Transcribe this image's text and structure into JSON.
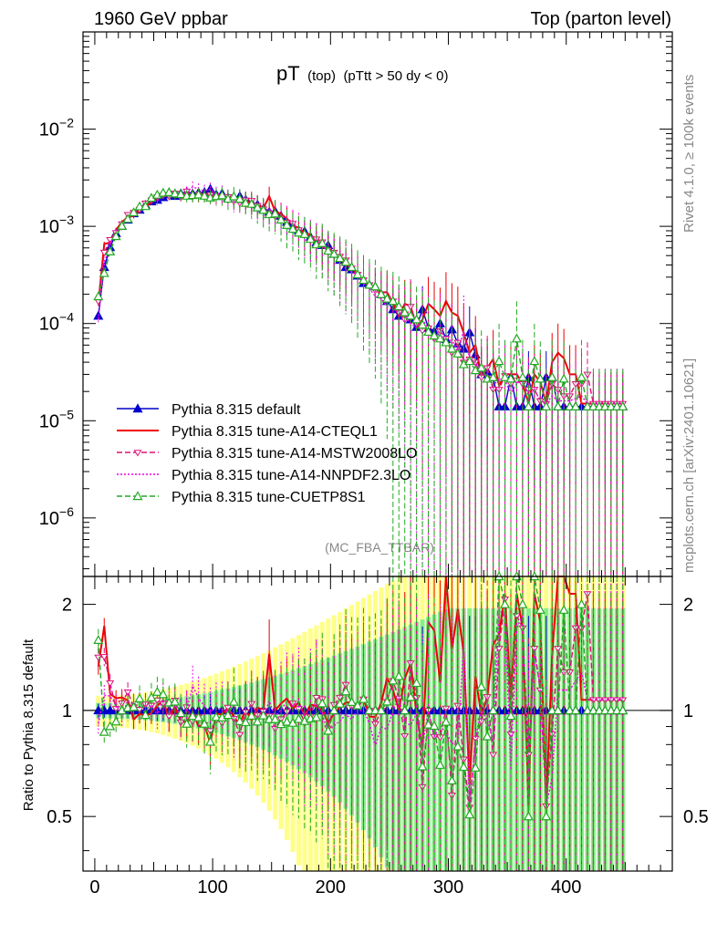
{
  "header": {
    "left": "1960 GeV ppbar",
    "right": "Top (parton level)"
  },
  "side_text": {
    "rivet": "Rivet 4.1.0, ≥ 100k events",
    "mcplots": "mcplots.cern.ch [arXiv:2401.10621]"
  },
  "chart_data": [
    {
      "type": "line",
      "panel": "main",
      "title_main": "pT",
      "title_sub": "(top)",
      "title_cut": "(pTtt > 50 dy < 0)",
      "annotation": "(MC_FBA_TTBAR)",
      "xlabel": "",
      "ylabel": "",
      "xlim": [
        -10,
        490
      ],
      "ylim": [
        2.5e-07,
        0.1
      ],
      "yscale": "log",
      "y_ticks": [
        {
          "value": 1e-06,
          "base": "10",
          "exp": "−6"
        },
        {
          "value": 1e-05,
          "base": "10",
          "exp": "−5"
        },
        {
          "value": 0.0001,
          "base": "10",
          "exp": "−4"
        },
        {
          "value": 0.001,
          "base": "10",
          "exp": "−3"
        },
        {
          "value": 0.01,
          "base": "10",
          "exp": "−2"
        }
      ],
      "x": [
        3,
        8,
        13,
        18,
        23,
        28,
        33,
        38,
        43,
        48,
        53,
        58,
        63,
        68,
        73,
        78,
        83,
        88,
        93,
        98,
        103,
        108,
        113,
        118,
        123,
        128,
        133,
        138,
        143,
        148,
        153,
        158,
        163,
        168,
        173,
        178,
        183,
        188,
        193,
        198,
        203,
        208,
        213,
        218,
        223,
        228,
        233,
        238,
        243,
        248,
        253,
        258,
        263,
        268,
        273,
        278,
        283,
        288,
        293,
        298,
        303,
        308,
        313,
        318,
        323,
        328,
        333,
        338,
        343,
        348,
        353,
        358,
        363,
        368,
        373,
        378,
        383,
        388,
        393,
        398,
        403,
        408,
        413,
        418,
        423,
        428,
        433,
        438,
        443,
        448
      ],
      "series": [
        {
          "name": "Pythia 8.315 default",
          "color": "#0000cc",
          "dash": "solid",
          "marker": "triangle-filled",
          "values": [
            0.00012,
            0.00038,
            0.00061,
            0.00085,
            0.00101,
            0.00117,
            0.00136,
            0.00148,
            0.00166,
            0.0018,
            0.00187,
            0.00199,
            0.00213,
            0.00205,
            0.00218,
            0.00225,
            0.00217,
            0.00222,
            0.00225,
            0.00242,
            0.00213,
            0.00218,
            0.00198,
            0.00192,
            0.00205,
            0.00188,
            0.00176,
            0.00168,
            0.00152,
            0.00141,
            0.00143,
            0.00128,
            0.00111,
            0.00102,
            0.00091,
            0.00089,
            0.00078,
            0.00068,
            0.00064,
            0.00064,
            0.00052,
            0.00045,
            0.00038,
            0.00036,
            0.00031,
            0.00026,
            0.00025,
            0.00024,
            0.0002,
            0.00017,
            0.00014,
            0.00012,
            0.00013,
            0.00011,
            9.2e-05,
            0.00014,
            9e-05,
            8.3e-05,
            0.0001,
            6.9e-05,
            8.7e-05,
            6.2e-05,
            5.5e-05,
            8.1e-05,
            4.8e-05,
            3e-05,
            3.2e-05,
            2.8e-05,
            1.4e-05,
            1.4e-05,
            2.8e-05,
            1.4e-05,
            1.4e-05,
            2.8e-05,
            1.4e-05,
            1.4e-05,
            2.8e-05,
            2.8e-05,
            1.4e-05,
            1.4e-05,
            1.4e-05,
            1.4e-05,
            1.4e-05,
            1.4e-05,
            1.4e-05,
            1.4e-05,
            1.4e-05,
            1.4e-05,
            1.4e-05,
            1.4e-05
          ]
        },
        {
          "name": "Pythia 8.315 tune-A14-CTEQL1",
          "color": "#ee0000",
          "dash": "solid",
          "marker": "none",
          "values": [
            0.00016,
            0.00066,
            0.00068,
            0.00092,
            0.0011,
            0.00125,
            0.00128,
            0.00145,
            0.0016,
            0.00177,
            0.00193,
            0.00212,
            0.00202,
            0.00209,
            0.00203,
            0.00208,
            0.00215,
            0.002,
            0.00205,
            0.00195,
            0.00209,
            0.00212,
            0.00202,
            0.00184,
            0.00187,
            0.00189,
            0.00165,
            0.00171,
            0.00153,
            0.00204,
            0.00143,
            0.00134,
            0.0012,
            0.00103,
            0.00096,
            0.00086,
            0.00081,
            0.0007,
            0.00064,
            0.00059,
            0.00051,
            0.00046,
            0.0004,
            0.00038,
            0.00032,
            0.00028,
            0.00024,
            0.00023,
            0.00021,
            0.00021,
            0.00016,
            0.00012,
            0.00016,
            0.00015,
            9e-05,
            0.00011,
            0.00016,
            0.00014,
            0.00012,
            0.00017,
            0.00013,
            0.00012,
            8e-05,
            5e-05,
            6e-05,
            2.9e-05,
            3.5e-05,
            4.3e-05,
            2.3e-05,
            3e-05,
            3e-05,
            3e-05,
            2.4e-05,
            1.5e-05,
            3e-05,
            2.5e-05,
            1.5e-05,
            4e-05,
            5e-05,
            4.4e-05,
            3e-05,
            3e-05,
            1.5e-05,
            1.5e-05,
            1.5e-05,
            1.5e-05,
            1.5e-05,
            1.5e-05,
            1.5e-05,
            1.5e-05
          ]
        },
        {
          "name": "Pythia 8.315 tune-A14-MSTW2008LO",
          "color": "#dd1177",
          "dash": "dashed",
          "marker": "triangle-down-open",
          "values": [
            0.00017,
            0.00054,
            0.00073,
            0.00086,
            0.00106,
            0.00132,
            0.00139,
            0.00149,
            0.00173,
            0.00186,
            0.002,
            0.00208,
            0.00205,
            0.00219,
            0.00202,
            0.0023,
            0.00202,
            0.00213,
            0.00205,
            0.00212,
            0.002,
            0.00201,
            0.00202,
            0.00182,
            0.00175,
            0.00186,
            0.00184,
            0.00163,
            0.00151,
            0.00136,
            0.00127,
            0.00121,
            0.0011,
            0.00107,
            0.00092,
            0.00082,
            0.00075,
            0.00074,
            0.00069,
            0.00057,
            0.00054,
            0.00049,
            0.00045,
            0.00037,
            0.00032,
            0.00028,
            0.00025,
            0.00022,
            0.0002,
            0.00018,
            0.00017,
            0.00013,
            0.00011,
            0.00015,
            0.0001,
            8.5e-05,
            9e-05,
            7e-05,
            8.4e-05,
            7e-05,
            5e-05,
            6.4e-05,
            4e-05,
            4.3e-05,
            4e-05,
            2.8e-05,
            3.5e-05,
            2.1e-05,
            2.1e-05,
            2.9e-05,
            2.4e-05,
            2.6e-05,
            2.4e-05,
            2.1e-05,
            2.1e-05,
            1.6e-05,
            1.5e-05,
            2.4e-05,
            2.1e-05,
            1.8e-05,
            1.8e-05,
            2.4e-05,
            2.4e-05,
            3e-05,
            1.5e-05,
            1.5e-05,
            1.5e-05,
            1.5e-05,
            1.5e-05,
            1.5e-05
          ]
        },
        {
          "name": "Pythia 8.315 tune-A14-NNPDF2.3LO",
          "color": "#ee00ee",
          "dash": "dotted",
          "marker": "none",
          "values": [
            0.00011,
            0.00042,
            0.00067,
            0.00088,
            0.00097,
            0.00125,
            0.00141,
            0.00158,
            0.00165,
            0.00187,
            0.00181,
            0.00216,
            0.00223,
            0.00214,
            0.00208,
            0.00225,
            0.00255,
            0.00241,
            0.00231,
            0.0024,
            0.00216,
            0.0022,
            0.00196,
            0.00179,
            0.00188,
            0.00174,
            0.0017,
            0.0016,
            0.00146,
            0.0015,
            0.00137,
            0.00129,
            0.00117,
            0.00105,
            0.00096,
            0.00086,
            0.00079,
            0.00072,
            0.00062,
            0.00056,
            0.00047,
            0.00042,
            0.00037,
            0.00034,
            0.00031,
            0.00026,
            0.00023,
            0.00019,
            0.00018,
            0.00015,
            0.00014,
            0.00013,
            0.00012,
            0.0001,
            9e-05,
            0.00011,
            9e-05,
            7e-05,
            9e-05,
            6e-05,
            7e-05,
            5e-05,
            8.5e-05,
            4.3e-05,
            4e-05,
            3e-05,
            3e-05,
            2.3e-05,
            2.7e-05,
            2.6e-05,
            1.9e-05,
            2.4e-05,
            2.6e-05,
            1.8e-05,
            2.1e-05,
            1.6e-05,
            1.5e-05,
            1.8e-05,
            1.6e-05,
            1.6e-05,
            1.6e-05,
            1.7e-05,
            1.8e-05,
            1.5e-05,
            1.5e-05,
            1.5e-05,
            1.5e-05,
            1.5e-05,
            1.5e-05,
            1.5e-05
          ]
        },
        {
          "name": "Pythia 8.315 tune-CUETP8S1",
          "color": "#22aa22",
          "dash": "dashed",
          "marker": "triangle-open",
          "values": [
            0.00019,
            0.00033,
            0.00055,
            0.00079,
            0.00101,
            0.00119,
            0.00139,
            0.0016,
            0.00161,
            0.00196,
            0.00211,
            0.00221,
            0.00224,
            0.00217,
            0.00214,
            0.00206,
            0.00209,
            0.00212,
            0.00206,
            0.00197,
            0.00204,
            0.00208,
            0.00192,
            0.00203,
            0.00191,
            0.00174,
            0.0017,
            0.00156,
            0.00147,
            0.00133,
            0.00135,
            0.00117,
            0.00103,
            0.00094,
            0.00086,
            0.00083,
            0.00074,
            0.00065,
            0.00067,
            0.00056,
            0.00052,
            0.00047,
            0.00043,
            0.00038,
            0.00032,
            0.00028,
            0.00025,
            0.00024,
            0.0002,
            0.00018,
            0.00017,
            0.00015,
            0.00013,
            0.00012,
            0.00011,
            9.7e-05,
            8.2e-05,
            7.5e-05,
            7e-05,
            6.4e-05,
            5.5e-05,
            4.9e-05,
            3.8e-05,
            4.1e-05,
            3.3e-05,
            3.5e-05,
            2.7e-05,
            2.8e-05,
            4.1e-05,
            2.8e-05,
            2.7e-05,
            7e-05,
            2.8e-05,
            1.4e-05,
            4.1e-05,
            2.7e-05,
            1.4e-05,
            2.8e-05,
            1.4e-05,
            2.7e-05,
            1.4e-05,
            1.4e-05,
            2.8e-05,
            1.4e-05,
            1.4e-05,
            1.4e-05,
            1.4e-05,
            1.4e-05,
            1.4e-05,
            1.4e-05
          ]
        }
      ],
      "legend": {
        "position": "lower-left",
        "entries": [
          "Pythia 8.315 default",
          "Pythia 8.315 tune-A14-CTEQL1",
          "Pythia 8.315 tune-A14-MSTW2008LO",
          "Pythia 8.315 tune-A14-NNPDF2.3LO",
          "Pythia 8.315 tune-CUETP8S1"
        ]
      }
    },
    {
      "type": "line",
      "panel": "ratio",
      "xlabel": "",
      "ylabel": "Ratio to Pythia 8.315 default",
      "xlim": [
        -10,
        490
      ],
      "ylim": [
        0.35,
        2.4
      ],
      "y_ticks_left": [
        "0.5",
        "1",
        "2"
      ],
      "y_ticks_right": [
        "0.5",
        "1",
        "2"
      ],
      "x_ticks": [
        "0",
        "100",
        "200",
        "300",
        "400"
      ],
      "reference": 1,
      "bands": {
        "inner_color": "#88ee88",
        "outer_color": "#ffff88"
      }
    }
  ]
}
